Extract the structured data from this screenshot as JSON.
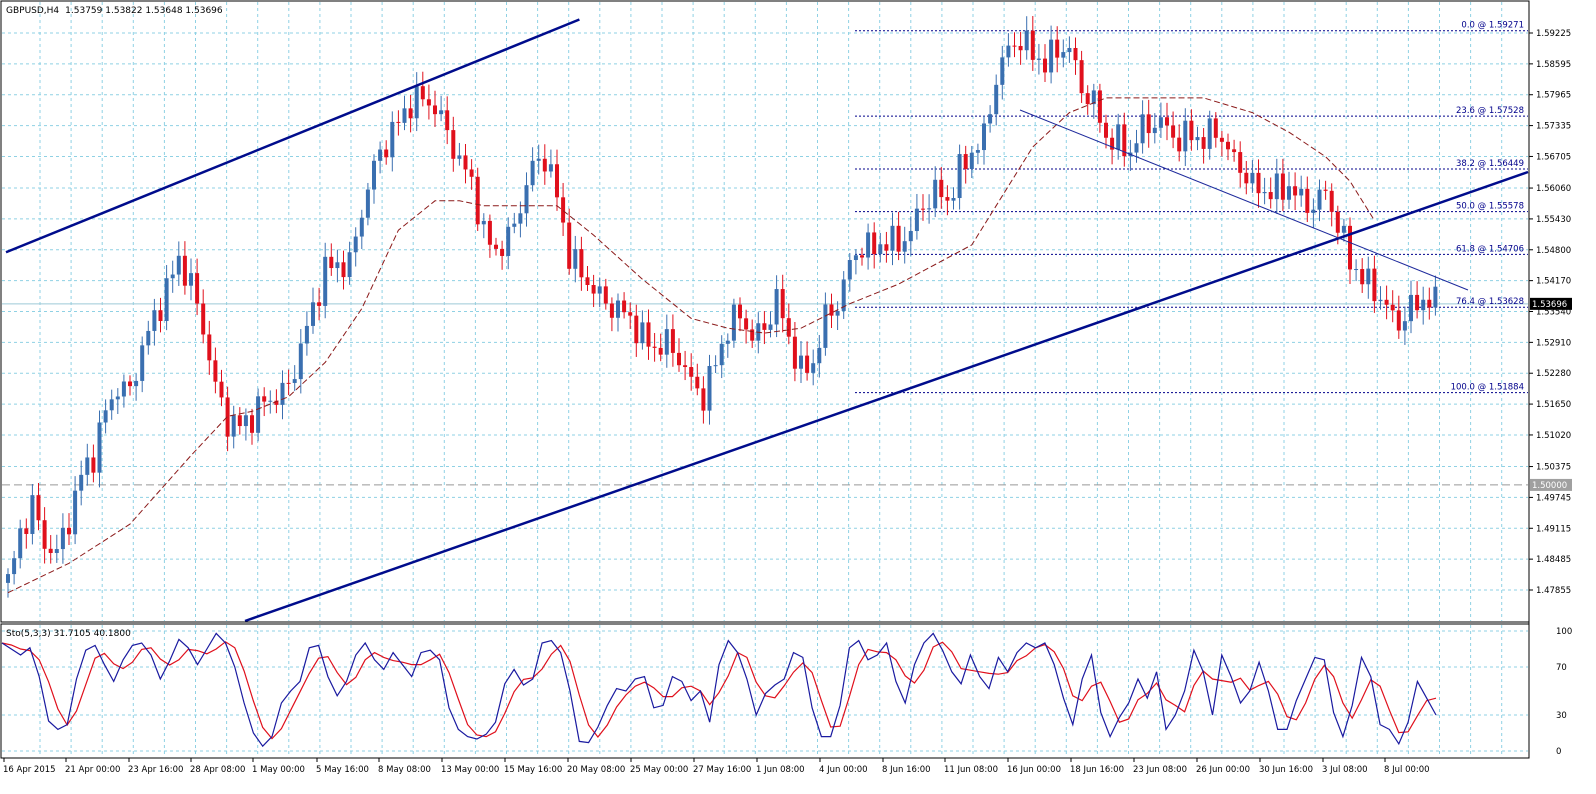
{
  "header": {
    "symbol": "GBPUSD,H4",
    "ohlc": "1.53759 1.53822 1.53648 1.53696"
  },
  "osc_header": "Sto(5,3,3) 31.7105 40.1800",
  "colors": {
    "bull": "#3a6fb0",
    "bear": "#e0101c",
    "grid": "#8fd1e4",
    "channel": "#000c8c",
    "ma": "#8b1a1a",
    "fib": "#00008b",
    "sto_main": "#1a1aa0",
    "sto_signal": "#e0101c"
  },
  "price_axis": [
    "1.59225",
    "1.58595",
    "1.57965",
    "1.57335",
    "1.56705",
    "1.56060",
    "1.55430",
    "1.54800",
    "1.54170",
    "1.53540",
    "1.52910",
    "1.52280",
    "1.51650",
    "1.51020",
    "1.50375",
    "1.49745",
    "1.49115",
    "1.48485",
    "1.47855"
  ],
  "current_price": "1.53696",
  "level_tag": "1.50000",
  "osc_axis": [
    "100",
    "70",
    "30",
    "0"
  ],
  "time_axis": [
    "16 Apr 2015",
    "21 Apr 00:00",
    "23 Apr 16:00",
    "28 Apr 08:00",
    "1 May 00:00",
    "5 May 16:00",
    "8 May 08:00",
    "13 May 00:00",
    "15 May 16:00",
    "20 May 08:00",
    "25 May 00:00",
    "27 May 16:00",
    "1 Jun 08:00",
    "4 Jun 00:00",
    "8 Jun 16:00",
    "11 Jun 08:00",
    "16 Jun 00:00",
    "18 Jun 16:00",
    "23 Jun 08:00",
    "26 Jun 00:00",
    "30 Jun 16:00",
    "3 Jul 08:00",
    "8 Jul 00:00"
  ],
  "fib_levels": [
    {
      "label": "0.0 @ 1.59271",
      "price": 1.59271
    },
    {
      "label": "23.6 @ 1.57528",
      "price": 1.57528
    },
    {
      "label": "38.2 @ 1.56449",
      "price": 1.56449
    },
    {
      "label": "50.0 @ 1.55578",
      "price": 1.55578
    },
    {
      "label": "61.8 @ 1.54706",
      "price": 1.54706
    },
    {
      "label": "76.4 @ 1.53628",
      "price": 1.53628
    },
    {
      "label": "100.0 @ 1.51884",
      "price": 1.51884
    }
  ],
  "chart_data": {
    "type": "candlestick",
    "symbol": "GBPUSD",
    "timeframe": "H4",
    "ylim": [
      1.4755,
      1.595
    ],
    "last": {
      "open": 1.53759,
      "high": 1.53822,
      "low": 1.53648,
      "close": 1.53696
    },
    "close_path": [
      [
        0,
        1.48
      ],
      [
        2,
        1.49
      ],
      [
        4,
        1.496
      ],
      [
        6,
        1.488
      ],
      [
        8,
        1.486
      ],
      [
        10,
        1.493
      ],
      [
        12,
        1.502
      ],
      [
        14,
        1.506
      ],
      [
        16,
        1.515
      ],
      [
        18,
        1.52
      ],
      [
        20,
        1.519
      ],
      [
        22,
        1.528
      ],
      [
        24,
        1.534
      ],
      [
        26,
        1.54
      ],
      [
        28,
        1.546
      ],
      [
        30,
        1.541
      ],
      [
        32,
        1.532
      ],
      [
        34,
        1.52
      ],
      [
        36,
        1.513
      ],
      [
        38,
        1.512
      ],
      [
        40,
        1.514
      ],
      [
        42,
        1.517
      ],
      [
        44,
        1.518
      ],
      [
        46,
        1.52
      ],
      [
        48,
        1.528
      ],
      [
        50,
        1.536
      ],
      [
        52,
        1.544
      ],
      [
        54,
        1.545
      ],
      [
        56,
        1.545
      ],
      [
        58,
        1.556
      ],
      [
        60,
        1.565
      ],
      [
        62,
        1.57
      ],
      [
        64,
        1.574
      ],
      [
        66,
        1.578
      ],
      [
        68,
        1.579
      ],
      [
        70,
        1.577
      ],
      [
        72,
        1.572
      ],
      [
        74,
        1.566
      ],
      [
        76,
        1.562
      ],
      [
        78,
        1.551
      ],
      [
        80,
        1.548
      ],
      [
        82,
        1.55
      ],
      [
        84,
        1.557
      ],
      [
        86,
        1.565
      ],
      [
        88,
        1.567
      ],
      [
        90,
        1.559
      ],
      [
        92,
        1.547
      ],
      [
        94,
        1.543
      ],
      [
        96,
        1.54
      ],
      [
        98,
        1.537
      ],
      [
        100,
        1.536
      ],
      [
        102,
        1.534
      ],
      [
        104,
        1.53
      ],
      [
        106,
        1.528
      ],
      [
        108,
        1.529
      ],
      [
        110,
        1.526
      ],
      [
        112,
        1.521
      ],
      [
        114,
        1.518
      ],
      [
        116,
        1.525
      ],
      [
        118,
        1.532
      ],
      [
        120,
        1.535
      ],
      [
        122,
        1.53
      ],
      [
        124,
        1.532
      ],
      [
        126,
        1.538
      ],
      [
        128,
        1.53
      ],
      [
        130,
        1.523
      ],
      [
        132,
        1.525
      ],
      [
        134,
        1.534
      ],
      [
        136,
        1.537
      ],
      [
        138,
        1.545
      ],
      [
        140,
        1.549
      ],
      [
        142,
        1.548
      ],
      [
        144,
        1.55
      ],
      [
        146,
        1.549
      ],
      [
        148,
        1.552
      ],
      [
        150,
        1.557
      ],
      [
        152,
        1.56
      ],
      [
        154,
        1.558
      ],
      [
        156,
        1.564
      ],
      [
        158,
        1.568
      ],
      [
        160,
        1.571
      ],
      [
        162,
        1.583
      ],
      [
        164,
        1.589
      ],
      [
        166,
        1.591
      ],
      [
        168,
        1.588
      ],
      [
        170,
        1.586
      ],
      [
        172,
        1.589
      ],
      [
        174,
        1.589
      ],
      [
        176,
        1.581
      ],
      [
        178,
        1.578
      ],
      [
        180,
        1.571
      ],
      [
        182,
        1.57
      ],
      [
        184,
        1.568
      ],
      [
        186,
        1.573
      ],
      [
        188,
        1.574
      ],
      [
        190,
        1.573
      ],
      [
        192,
        1.57
      ],
      [
        194,
        1.572
      ],
      [
        196,
        1.57
      ],
      [
        198,
        1.573
      ],
      [
        200,
        1.568
      ],
      [
        202,
        1.565
      ],
      [
        204,
        1.561
      ],
      [
        206,
        1.56
      ],
      [
        208,
        1.56
      ],
      [
        210,
        1.561
      ],
      [
        212,
        1.558
      ],
      [
        214,
        1.557
      ],
      [
        216,
        1.56
      ],
      [
        218,
        1.553
      ],
      [
        220,
        1.546
      ],
      [
        222,
        1.542
      ],
      [
        224,
        1.54
      ],
      [
        226,
        1.536
      ],
      [
        228,
        1.533
      ],
      [
        230,
        1.536
      ],
      [
        232,
        1.538
      ],
      [
        234,
        1.537
      ]
    ],
    "moving_average_path": [
      [
        0,
        1.478
      ],
      [
        10,
        1.484
      ],
      [
        20,
        1.492
      ],
      [
        30,
        1.506
      ],
      [
        36,
        1.514
      ],
      [
        40,
        1.515
      ],
      [
        46,
        1.518
      ],
      [
        52,
        1.525
      ],
      [
        58,
        1.536
      ],
      [
        64,
        1.552
      ],
      [
        70,
        1.558
      ],
      [
        74,
        1.558
      ],
      [
        78,
        1.557
      ],
      [
        84,
        1.557
      ],
      [
        90,
        1.557
      ],
      [
        96,
        1.551
      ],
      [
        104,
        1.542
      ],
      [
        112,
        1.534
      ],
      [
        118,
        1.532
      ],
      [
        124,
        1.531
      ],
      [
        130,
        1.532
      ],
      [
        138,
        1.537
      ],
      [
        146,
        1.541
      ],
      [
        152,
        1.545
      ],
      [
        158,
        1.549
      ],
      [
        162,
        1.557
      ],
      [
        168,
        1.569
      ],
      [
        174,
        1.576
      ],
      [
        180,
        1.579
      ],
      [
        188,
        1.579
      ],
      [
        196,
        1.579
      ],
      [
        204,
        1.576
      ],
      [
        210,
        1.572
      ],
      [
        216,
        1.567
      ],
      [
        220,
        1.562
      ],
      [
        224,
        1.554
      ]
    ],
    "stochastic": {
      "params": "5,3,3",
      "main": 31.7105,
      "signal": 40.18,
      "main_path": [
        90,
        85,
        80,
        86,
        62,
        25,
        18,
        22,
        60,
        84,
        88,
        72,
        58,
        76,
        88,
        90,
        80,
        60,
        75,
        93,
        86,
        72,
        85,
        98,
        90,
        70,
        40,
        15,
        4,
        12,
        40,
        50,
        58,
        86,
        88,
        62,
        46,
        58,
        80,
        90,
        76,
        68,
        82,
        72,
        62,
        82,
        84,
        76,
        36,
        18,
        12,
        10,
        14,
        24,
        56,
        68,
        55,
        60,
        90,
        92,
        82,
        50,
        8,
        7,
        20,
        38,
        52,
        50,
        60,
        62,
        36,
        38,
        62,
        58,
        42,
        50,
        24,
        72,
        92,
        82,
        60,
        30,
        48,
        55,
        60,
        82,
        78,
        36,
        12,
        12,
        38,
        86,
        92,
        76,
        80,
        90,
        58,
        40,
        72,
        90,
        98,
        84,
        66,
        56,
        80,
        62,
        52,
        78,
        66,
        82,
        90,
        86,
        90,
        72,
        44,
        22,
        60,
        80,
        32,
        12,
        28,
        40,
        60,
        44,
        66,
        18,
        30,
        50,
        84,
        66,
        30,
        80,
        62,
        40,
        50,
        74,
        50,
        18,
        18,
        42,
        60,
        78,
        76,
        32,
        12,
        38,
        78,
        62,
        22,
        18,
        6,
        24,
        58,
        44,
        30
      ]
    },
    "channel_top": [
      [
        0,
        1.5475
      ],
      [
        94,
        1.595
      ]
    ],
    "channel_bottom": [
      [
        50,
        1.478
      ],
      [
        196,
        1.564
      ]
    ],
    "trendline": [
      [
        166,
        1.578
      ],
      [
        230,
        1.5432
      ]
    ],
    "horizontal_level": 1.5
  }
}
